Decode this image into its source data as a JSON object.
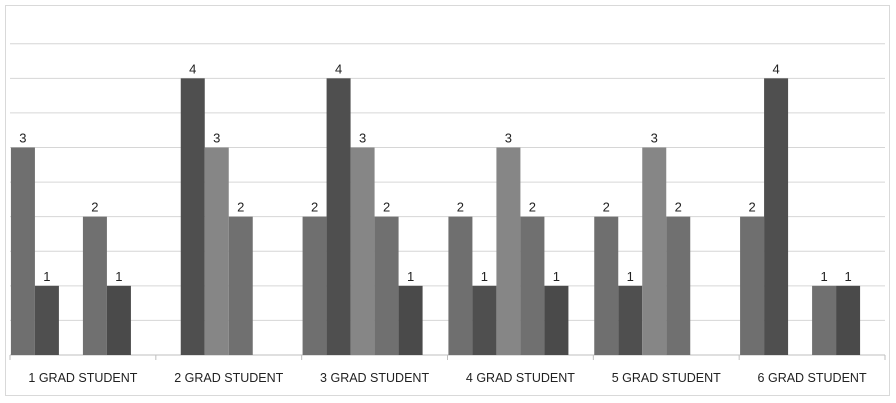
{
  "chart_data": {
    "type": "bar",
    "title": "",
    "xlabel": "",
    "ylabel": "",
    "ylim": [
      0,
      4.8
    ],
    "grid": true,
    "legend": "none",
    "groups": [
      {
        "label": "1 GRAD STUDENT",
        "values": [
          3,
          1,
          null,
          2,
          1,
          null
        ]
      },
      {
        "label": "2 GRAD STUDENT",
        "values": [
          null,
          4,
          3,
          2,
          null,
          null
        ]
      },
      {
        "label": "3 GRAD STUDENT",
        "values": [
          2,
          4,
          3,
          2,
          1,
          null
        ]
      },
      {
        "label": "4 GRAD STUDENT",
        "values": [
          2,
          1,
          3,
          2,
          1,
          null
        ]
      },
      {
        "label": "5 GRAD STUDENT",
        "values": [
          2,
          1,
          3,
          2,
          null,
          null
        ]
      },
      {
        "label": "6 GRAD STUDENT",
        "values": [
          2,
          4,
          null,
          1,
          1,
          null
        ]
      }
    ],
    "colors": [
      "#6f6f6f",
      "#4f4f4f",
      "#868686",
      "#707070",
      "#4a4a4a",
      "#777777"
    ]
  }
}
